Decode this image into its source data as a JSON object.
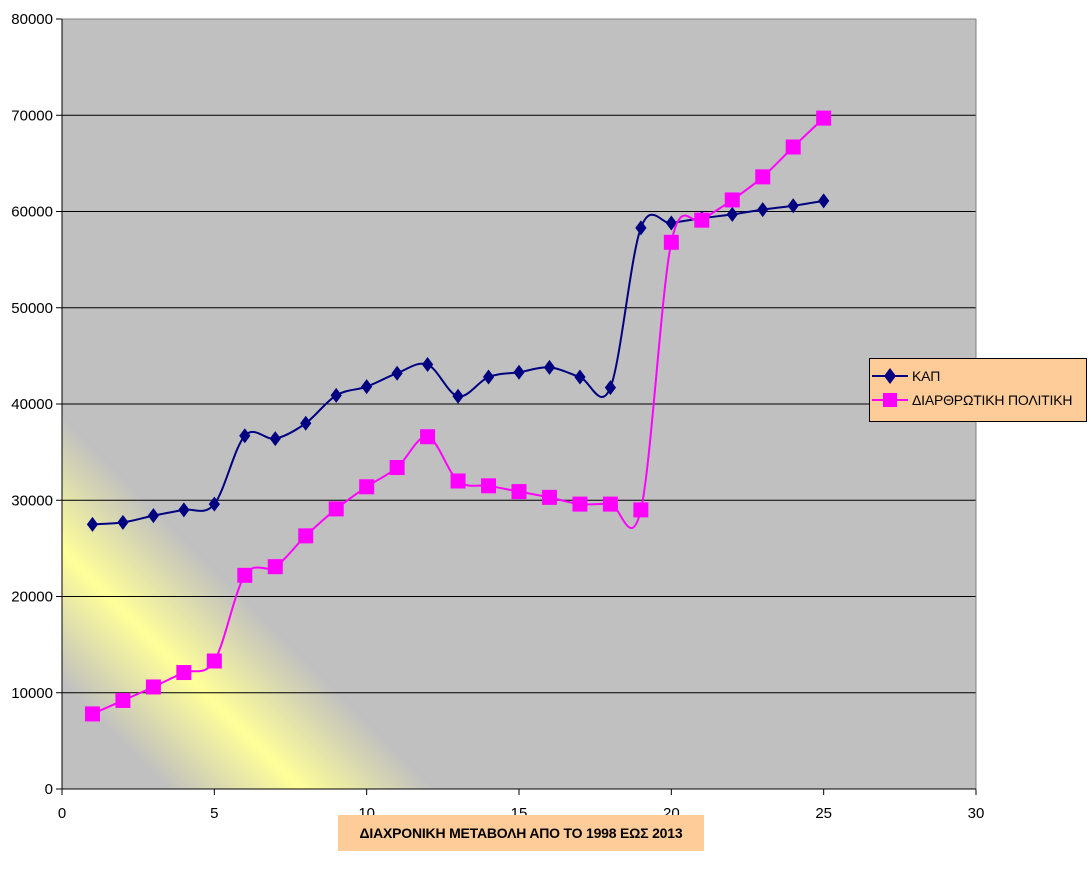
{
  "chart_data": {
    "type": "scatter",
    "xlabel": "ΔΙΑΧΡΟΝΙΚΗ ΜΕΤΑΒΟΛΗ ΑΠΟ ΤΟ 1998 ΕΩΣ 2013",
    "ylabel": "",
    "xlim": [
      0,
      30
    ],
    "ylim": [
      0,
      80000
    ],
    "x_ticks": [
      "0",
      "5",
      "10",
      "15",
      "20",
      "25",
      "30"
    ],
    "y_ticks": [
      "0",
      "10000",
      "20000",
      "30000",
      "40000",
      "50000",
      "60000",
      "70000",
      "80000"
    ],
    "grid": "horizontal",
    "legend_position": "right",
    "smooth": true,
    "colors": {
      "plot_background": "#c0c0c0",
      "highlight_band": "#ffff99",
      "legend_background": "#fecc99"
    },
    "series": [
      {
        "name": "ΚΑΠ",
        "color": "#000080",
        "marker": "diamond",
        "x": [
          1,
          2,
          3,
          4,
          5,
          6,
          7,
          8,
          9,
          10,
          11,
          12,
          13,
          14,
          15,
          16,
          17,
          18,
          19,
          20,
          21,
          22,
          23,
          24,
          25
        ],
        "y": [
          27500,
          27700,
          28400,
          29000,
          29600,
          36700,
          36400,
          38000,
          40900,
          41800,
          43200,
          44100,
          40800,
          42800,
          43300,
          43800,
          42800,
          41700,
          58300,
          58800,
          59300,
          59700,
          60200,
          60600,
          61100
        ]
      },
      {
        "name": "ΔΙΑΡΘΡΩΤΙΚΗ ΠΟΛΙΤΙΚΗ",
        "color": "#ff00ff",
        "marker": "square",
        "x": [
          1,
          2,
          3,
          4,
          5,
          6,
          7,
          8,
          9,
          10,
          11,
          12,
          13,
          14,
          15,
          16,
          17,
          18,
          19,
          20,
          21,
          22,
          23,
          24,
          25
        ],
        "y": [
          7800,
          9200,
          10600,
          12100,
          13300,
          22200,
          23100,
          26300,
          29100,
          31400,
          33400,
          36600,
          32000,
          31500,
          30900,
          30300,
          29600,
          29600,
          29000,
          56800,
          59100,
          61200,
          63600,
          66700,
          69700
        ]
      }
    ]
  }
}
